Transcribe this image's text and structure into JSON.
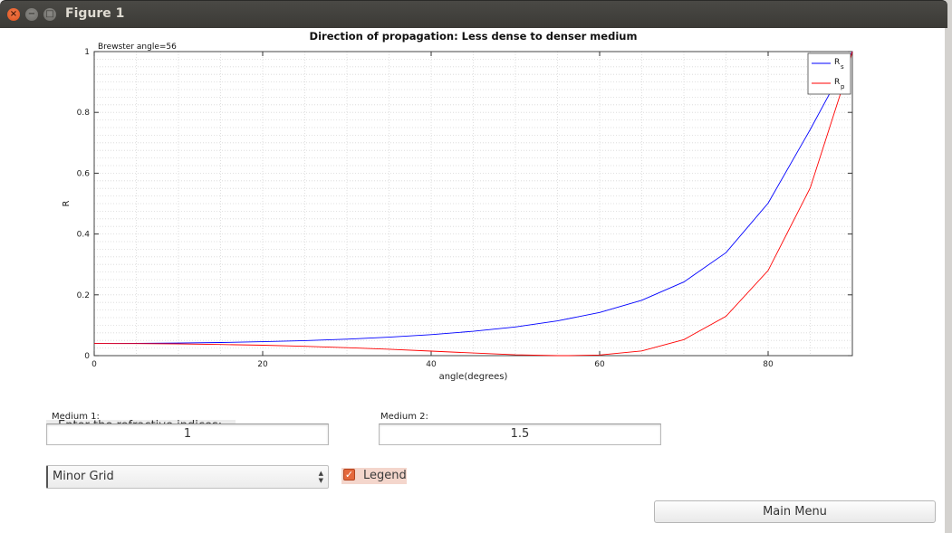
{
  "window": {
    "title": "Figure 1",
    "close_glyph": "×",
    "min_glyph": "−",
    "max_glyph": "□"
  },
  "chart_data": {
    "type": "line",
    "title": "Direction of propagation: Less dense to denser medium",
    "annotation": "Brewster angle=56",
    "xlabel": "angle(degrees)",
    "ylabel": "R",
    "xlim": [
      0,
      90
    ],
    "ylim": [
      0,
      1
    ],
    "xticks": [
      0,
      20,
      40,
      60,
      80
    ],
    "yticks": [
      0,
      0.2,
      0.4,
      0.6,
      0.8,
      1
    ],
    "ytick_labels": [
      "0",
      "0.2",
      "0.4",
      "0.6",
      "0.8",
      "1"
    ],
    "grid": "minor",
    "legend_position": "top-right",
    "series": [
      {
        "name": "Rs",
        "legend_main": "R",
        "legend_sub": "s",
        "color": "#0000ff",
        "x": [
          0,
          5,
          10,
          15,
          20,
          25,
          30,
          35,
          40,
          45,
          50,
          55,
          60,
          65,
          70,
          75,
          80,
          85,
          89,
          90
        ],
        "y": [
          0.04,
          0.0403,
          0.0414,
          0.0432,
          0.0458,
          0.0494,
          0.0543,
          0.0607,
          0.069,
          0.08,
          0.0944,
          0.1142,
          0.1419,
          0.182,
          0.2424,
          0.3386,
          0.5014,
          0.7437,
          0.9487,
          1.0
        ]
      },
      {
        "name": "Rp",
        "legend_main": "R",
        "legend_sub": "p",
        "color": "#ff0000",
        "x": [
          0,
          5,
          10,
          15,
          20,
          25,
          30,
          35,
          40,
          45,
          50,
          55,
          56.31,
          60,
          65,
          70,
          75,
          80,
          85,
          89,
          90
        ],
        "y": [
          0.04,
          0.0397,
          0.0386,
          0.0367,
          0.0341,
          0.0306,
          0.0263,
          0.0211,
          0.015,
          0.0085,
          0.0027,
          5e-05,
          0.0,
          0.0021,
          0.0155,
          0.0527,
          0.1296,
          0.28,
          0.5519,
          0.897,
          1.0
        ]
      }
    ]
  },
  "controls": {
    "refractive_label": "Enter the refractive indices:",
    "medium1_label": "Medium 1:",
    "medium1_value": "1",
    "medium2_label": "Medium 2:",
    "medium2_value": "1.5",
    "grid_select_value": "Minor Grid",
    "legend_checkbox_label": "Legend",
    "legend_checked": true,
    "main_menu_label": "Main Menu"
  }
}
